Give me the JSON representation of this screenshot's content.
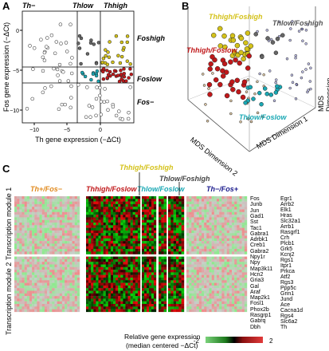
{
  "panels": {
    "a": {
      "letter": "A"
    },
    "b": {
      "letter": "B"
    },
    "c": {
      "letter": "C"
    }
  },
  "panel_a": {
    "top_labels": [
      "Th−",
      "Thlow",
      "Thhigh"
    ],
    "right_labels": [
      "Foshigh",
      "Foslow",
      "Fos−"
    ],
    "xlabel": "Th gene expression (−ΔCt)",
    "ylabel": "Fos gene expression (−ΔCt)",
    "x_ticks": [
      "−10",
      "−5",
      "0"
    ],
    "y_ticks": [
      "0",
      "−5",
      "−10"
    ]
  },
  "panel_b": {
    "labels": {
      "high_high": "Thhigh/Foshigh",
      "high_low": "Thhigh/Foslow",
      "low_high": "Thlow/Foshigh",
      "low_low": "Thlow/Foslow"
    },
    "axis1": "MDS Dimension 1",
    "axis2": "MDS Dimension 2",
    "axis3": "MDS Dimension 3"
  },
  "panel_c": {
    "groups": [
      "Th+/Fos−",
      "Thhigh/Foslow",
      "Thhigh/Foshigh",
      "Thlow/Foslow",
      "Thlow/Foshigh",
      "Th−/Fos+"
    ],
    "module1": "Transcription module 1",
    "module2": "Transcription module 2",
    "genes_col1": [
      "Fos",
      "Junb",
      "Jun",
      "Gad1",
      "Sst",
      "Tac1",
      "Gabra1",
      "Adrbk1",
      "Creb1",
      "Gabra2",
      "Npy1r",
      "Npy",
      "Map3k11",
      "Hcn2",
      "Gria3",
      "Gal",
      "Araf",
      "Map2k1",
      "Fosl1",
      "Phox2b",
      "Rasgrp1",
      "Gabrq",
      "Dbh"
    ],
    "genes_col2": [
      "Egr1",
      "Arrb2",
      "Elk1",
      "Hras",
      "Slc32a1",
      "Arrb1",
      "Rasgrf1",
      "Crh",
      "Plcb1",
      "Grk5",
      "Kcnj2",
      "Rgs1",
      "Itpr1",
      "Prkca",
      "Atf2",
      "Rgs3",
      "Ppp5c",
      "Grin1",
      "Jund",
      "Ace",
      "Cacna1d",
      "Rgs4",
      "Slc6a2",
      "Th"
    ],
    "legend_label_1": "Relative gene expression",
    "legend_label_2": "(median centered −ΔCt)",
    "legend_min": "-2",
    "legend_max": "2"
  },
  "colors": {
    "yellow": "#d4c21a",
    "red": "#c0181a",
    "cyan": "#1aa8b4",
    "gray": "#666666",
    "tan": "#c9a56b",
    "blue": "#8080d0",
    "orange": "#e08a1e",
    "navy": "#1a1a8c"
  }
}
